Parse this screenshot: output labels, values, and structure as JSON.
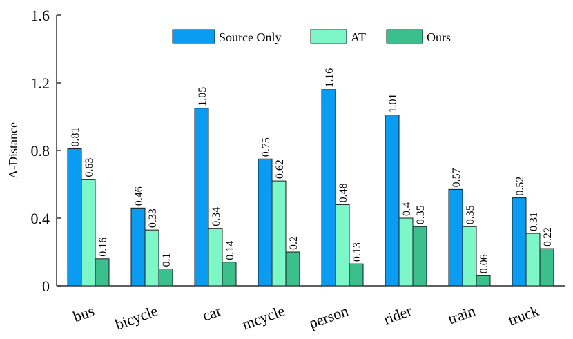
{
  "chart_data": {
    "type": "bar",
    "title": "",
    "xlabel": "",
    "ylabel": "A-Distance",
    "ylim": [
      0,
      1.6
    ],
    "yticks": [
      "0",
      "0.4",
      "0.8",
      "1.2",
      "1.6"
    ],
    "categories": [
      "bus",
      "bicycle",
      "car",
      "mcycle",
      "person",
      "rider",
      "train",
      "truck"
    ],
    "series": [
      {
        "name": "Source Only",
        "color": "#0a9cf0",
        "values": [
          0.81,
          0.46,
          1.05,
          0.75,
          1.16,
          1.01,
          0.57,
          0.52
        ],
        "labels": [
          "0.81",
          "0.46",
          "1.05",
          "0.75",
          "1.16",
          "1.01",
          "0.57",
          "0.52"
        ]
      },
      {
        "name": "AT",
        "color": "#7ef7c8",
        "values": [
          0.63,
          0.33,
          0.34,
          0.62,
          0.48,
          0.4,
          0.35,
          0.31
        ],
        "labels": [
          "0.63",
          "0.33",
          "0.34",
          "0.62",
          "0.48",
          "0.4",
          "0.35",
          "0.31"
        ]
      },
      {
        "name": "Ours",
        "color": "#3bbf8d",
        "values": [
          0.16,
          0.1,
          0.14,
          0.2,
          0.13,
          0.35,
          0.06,
          0.22
        ],
        "labels": [
          "0.16",
          "0.1",
          "0.14",
          "0.2",
          "0.13",
          "0.35",
          "0.06",
          "0.22"
        ]
      }
    ],
    "grid": false,
    "legend_position": "top-right"
  }
}
